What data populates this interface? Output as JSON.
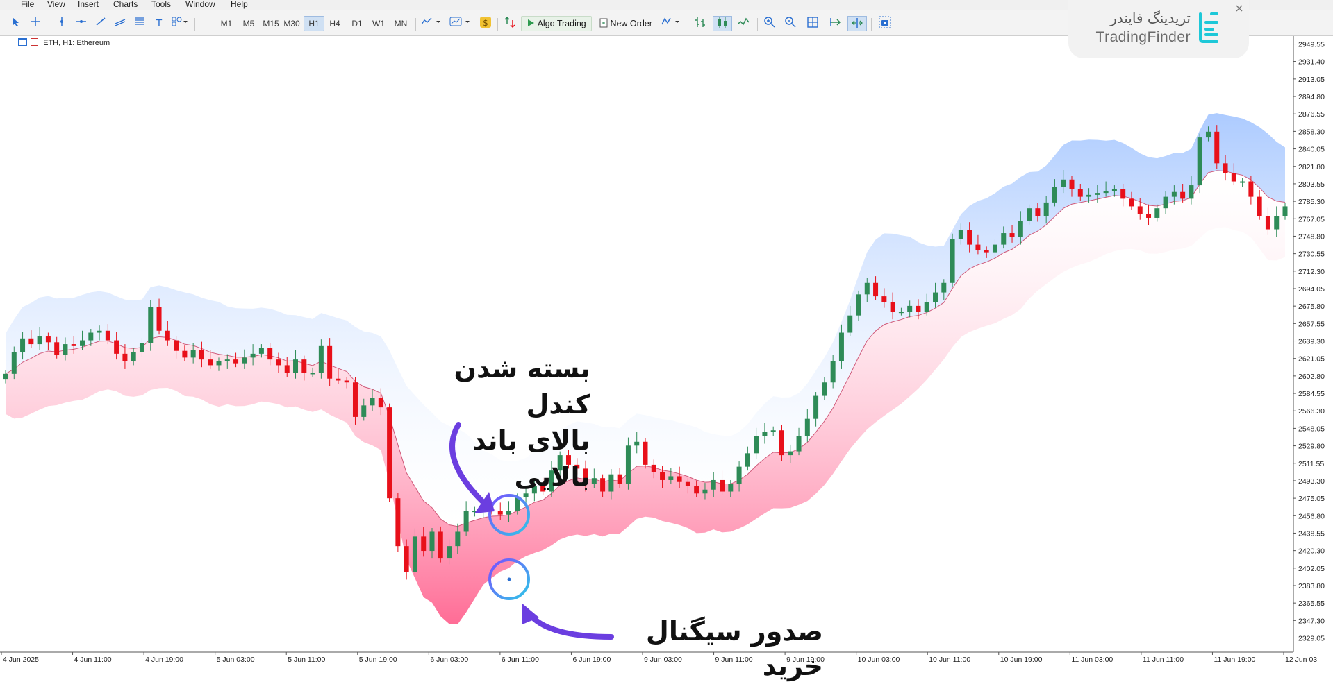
{
  "menu": [
    "File",
    "View",
    "Insert",
    "Charts",
    "Tools",
    "Window",
    "Help"
  ],
  "toolbar": {
    "timeframes": [
      "M1",
      "M5",
      "M15",
      "M30",
      "H1",
      "H4",
      "D1",
      "W1",
      "MN"
    ],
    "active_timeframe": "H1",
    "algo_trading": "Algo Trading",
    "new_order": "New Order"
  },
  "chart": {
    "label": "ETH, H1:  Ethereum",
    "price_axis": [
      "2949.55",
      "2931.40",
      "2913.05",
      "2894.80",
      "2876.55",
      "2858.30",
      "2840.05",
      "2821.80",
      "2803.55",
      "2785.30",
      "2767.05",
      "2748.80",
      "2730.55",
      "2712.30",
      "2694.05",
      "2675.80",
      "2657.55",
      "2639.30",
      "2621.05",
      "2602.80",
      "2584.55",
      "2566.30",
      "2548.05",
      "2529.80",
      "2511.55",
      "2493.30",
      "2475.05",
      "2456.80",
      "2438.55",
      "2420.30",
      "2402.05",
      "2383.80",
      "2365.55",
      "2347.30",
      "2329.05"
    ],
    "time_axis": [
      "4 Jun 2025",
      "4 Jun 11:00",
      "4 Jun 19:00",
      "5 Jun 03:00",
      "5 Jun 11:00",
      "5 Jun 19:00",
      "6 Jun 03:00",
      "6 Jun 11:00",
      "6 Jun 19:00",
      "9 Jun 03:00",
      "9 Jun 11:00",
      "9 Jun 19:00",
      "10 Jun 03:00",
      "10 Jun 11:00",
      "10 Jun 19:00",
      "11 Jun 03:00",
      "11 Jun 11:00",
      "11 Jun 19:00",
      "12 Jun 03"
    ],
    "bull_color": "#2e8b57",
    "bear_color": "#e8101a",
    "upper_band_color": "#a8c8ff",
    "lower_band_color": "#ff5c8a"
  },
  "chart_data": {
    "type": "candlestick",
    "ylim": [
      2320,
      2955
    ],
    "closes": [
      2605,
      2628,
      2642,
      2636,
      2644,
      2638,
      2625,
      2636,
      2634,
      2640,
      2648,
      2650,
      2640,
      2626,
      2618,
      2628,
      2637,
      2675,
      2650,
      2640,
      2629,
      2622,
      2630,
      2620,
      2614,
      2618,
      2620,
      2616,
      2622,
      2626,
      2632,
      2620,
      2614,
      2606,
      2620,
      2606,
      2606,
      2634,
      2600,
      2598,
      2596,
      2560,
      2572,
      2580,
      2570,
      2475,
      2425,
      2398,
      2435,
      2420,
      2440,
      2412,
      2425,
      2440,
      2462,
      2462,
      2464,
      2462,
      2458,
      2462,
      2476,
      2480,
      2488,
      2482,
      2504,
      2520,
      2510,
      2506,
      2490,
      2496,
      2482,
      2500,
      2490,
      2530,
      2534,
      2510,
      2502,
      2494,
      2498,
      2492,
      2488,
      2480,
      2484,
      2494,
      2482,
      2490,
      2508,
      2522,
      2540,
      2544,
      2546,
      2520,
      2524,
      2540,
      2558,
      2582,
      2596,
      2618,
      2648,
      2666,
      2688,
      2700,
      2686,
      2680,
      2670,
      2670,
      2676,
      2670,
      2680,
      2690,
      2700,
      2746,
      2755,
      2740,
      2734,
      2732,
      2740,
      2752,
      2748,
      2765,
      2778,
      2770,
      2784,
      2800,
      2808,
      2798,
      2790,
      2792,
      2794,
      2796,
      2798,
      2788,
      2780,
      2772,
      2768,
      2778,
      2790,
      2795,
      2788,
      2802,
      2852,
      2858,
      2825,
      2815,
      2806,
      2806,
      2790,
      2770,
      2756,
      2770,
      2780
    ]
  },
  "annotations": {
    "top": [
      "بسته شدن کندل",
      "بالای باند بالایی"
    ],
    "bottom": "صدور سیگنال خرید"
  },
  "logo": {
    "fa": "تریدینگ فایندر",
    "en": "TradingFinder"
  }
}
